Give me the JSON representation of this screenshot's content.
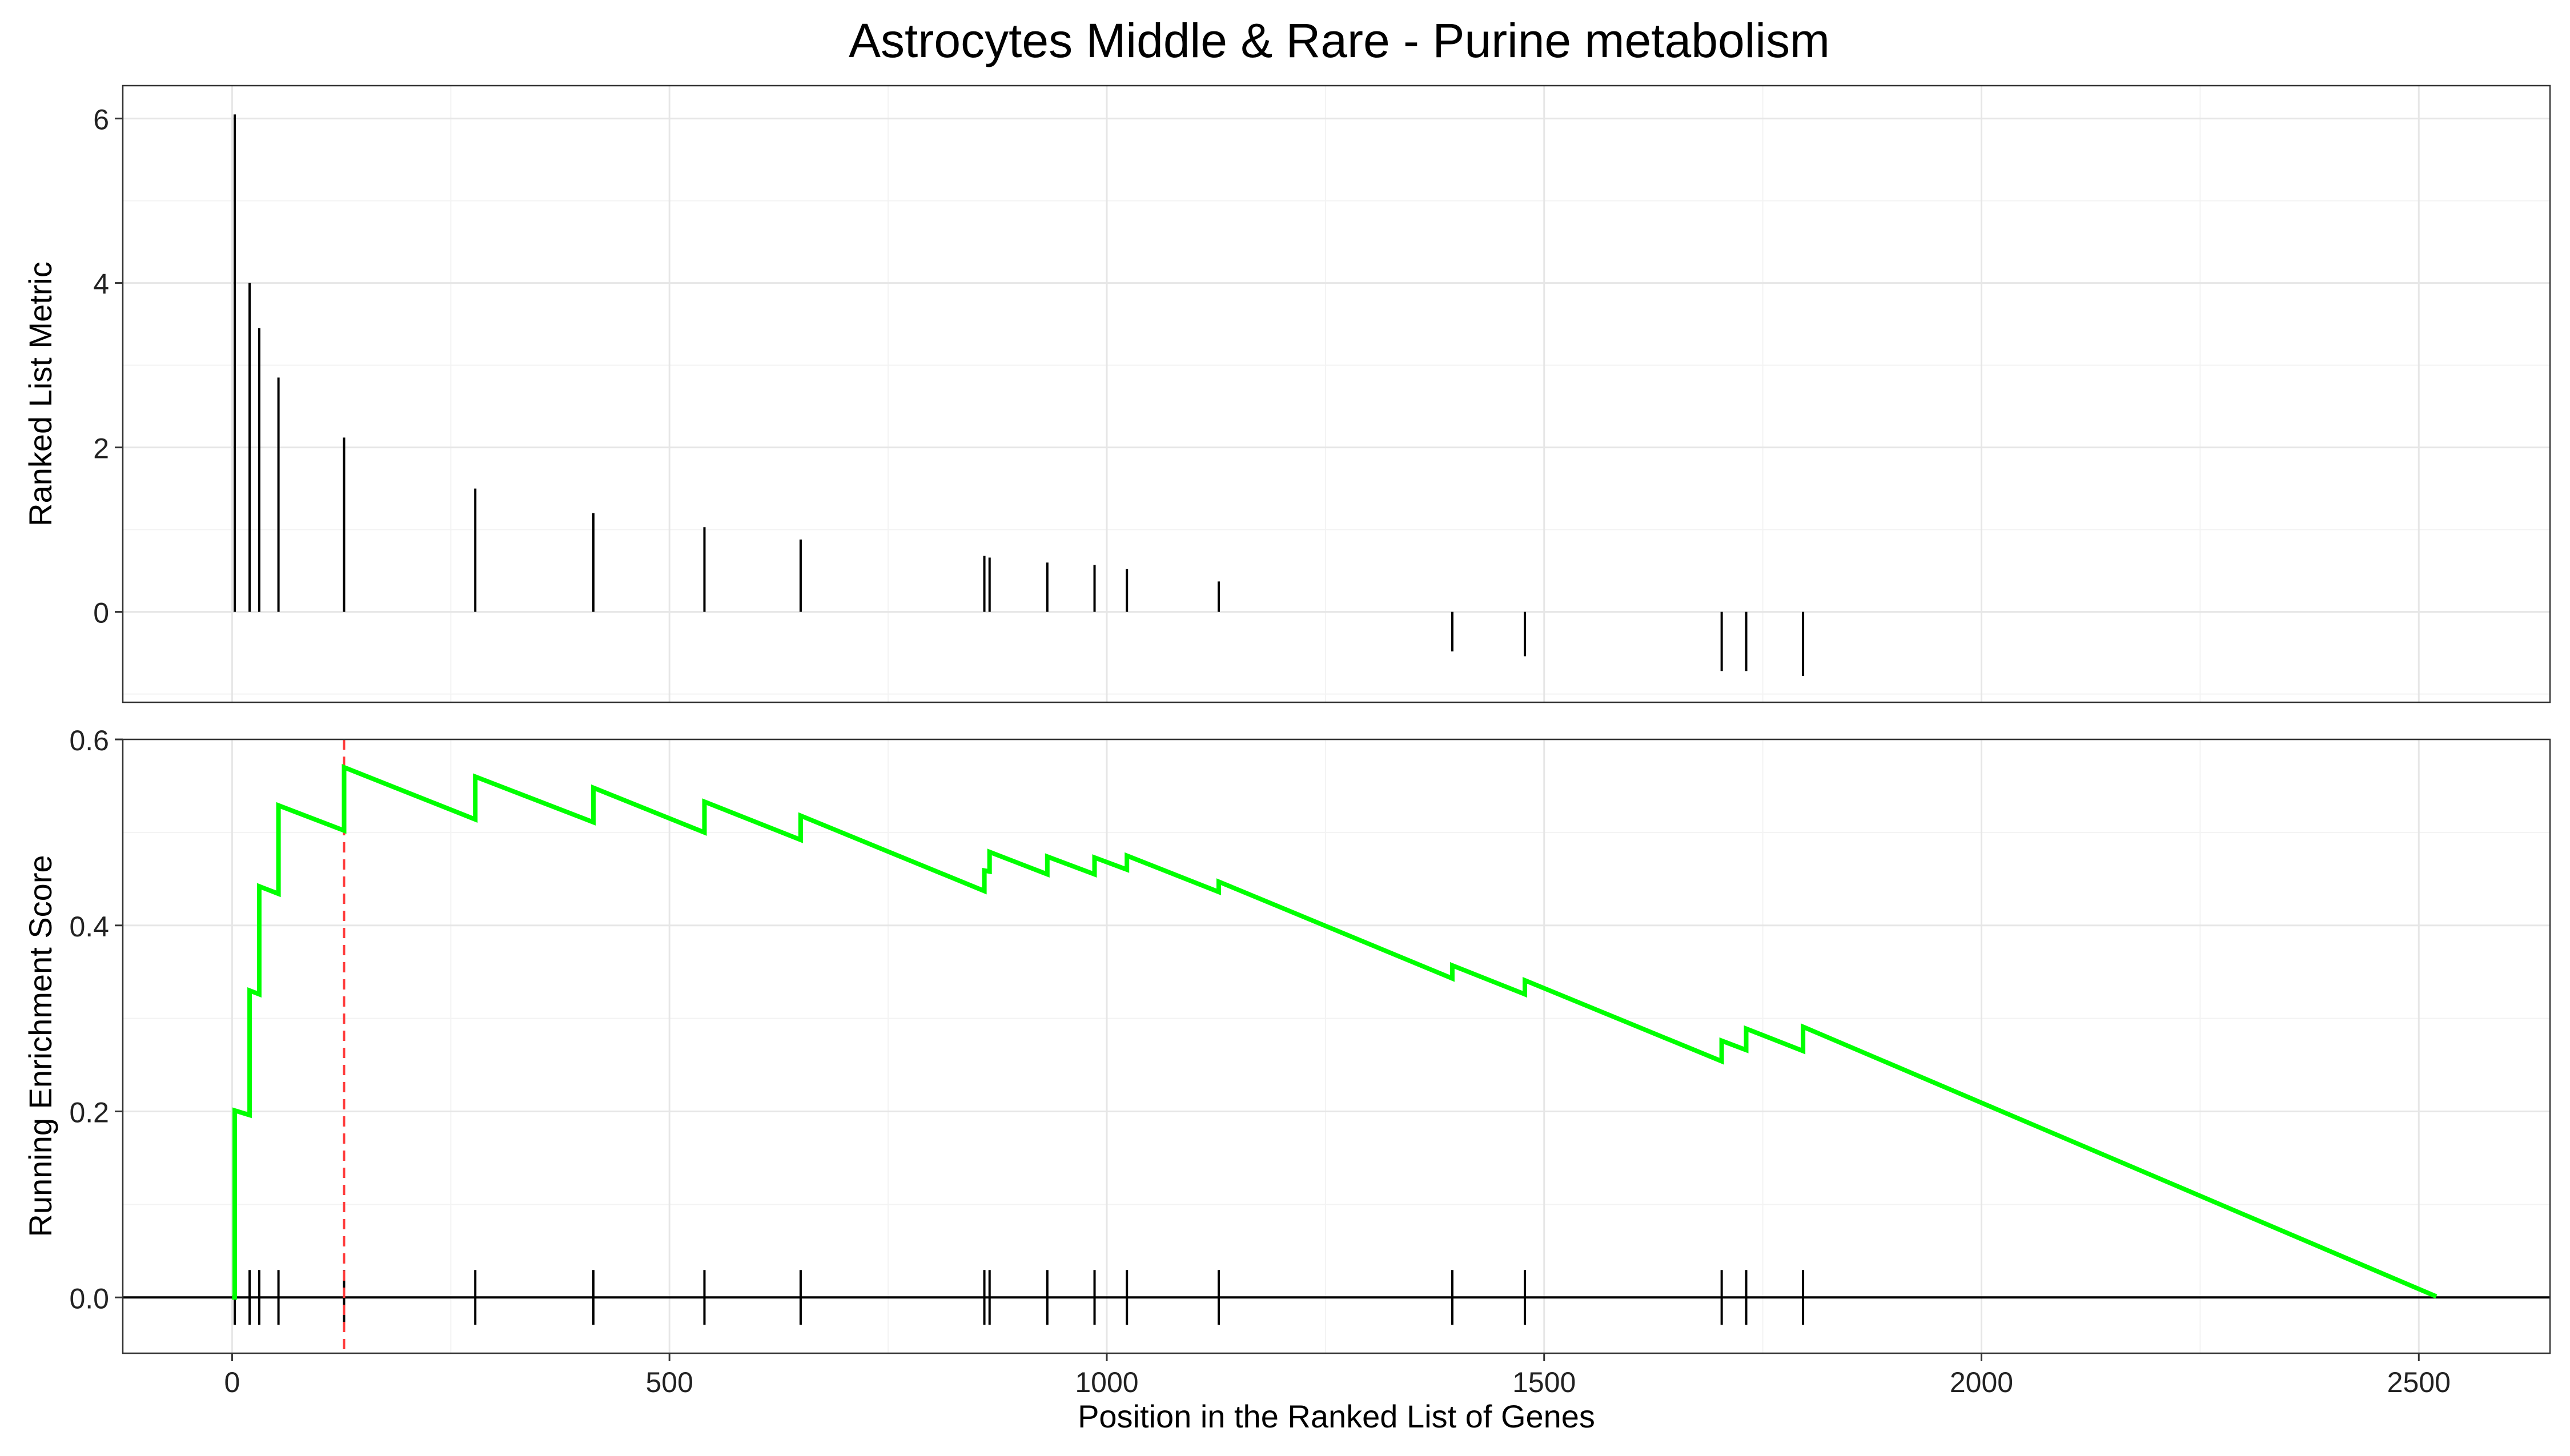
{
  "chart_data": {
    "type": "line",
    "title": "Astrocytes Middle & Rare - Purine metabolism",
    "xlabel": "Position in the Ranked List of Genes",
    "xlim": [
      -125,
      2650
    ],
    "x_ticks": [
      0,
      500,
      1000,
      1500,
      2000,
      2500
    ],
    "x_tick_labels": [
      "0",
      "500",
      "1000",
      "1500",
      "2000",
      "2500"
    ],
    "grid": true,
    "colors": {
      "enrichment_line": "#00ff00",
      "peak_marker": "#ff3b3b",
      "bars": "#000000",
      "grid_major": "#e6e6e6",
      "grid_minor": "#f3f3f3",
      "panel_border": "#333333"
    },
    "hit_positions": [
      3,
      20,
      31,
      53,
      128,
      278,
      413,
      540,
      650,
      860,
      866,
      932,
      986,
      1023,
      1128,
      1395,
      1478,
      1703,
      1731,
      1796
    ],
    "ranked_list": {
      "ylabel": "Ranked List Metric",
      "ylim": [
        -1.1,
        6.4
      ],
      "y_ticks": [
        0,
        2,
        4,
        6
      ],
      "y_tick_labels": [
        "0",
        "2",
        "4",
        "6"
      ],
      "metric_values": [
        6.05,
        4.0,
        3.45,
        2.85,
        2.12,
        1.5,
        1.2,
        1.03,
        0.88,
        0.68,
        0.66,
        0.6,
        0.57,
        0.52,
        0.37,
        -0.48,
        -0.54,
        -0.72,
        -0.72,
        -0.78
      ]
    },
    "running_score": {
      "ylabel": "Running Enrichment Score",
      "ylim": [
        -0.06,
        0.6
      ],
      "y_ticks": [
        0.0,
        0.2,
        0.4,
        0.6
      ],
      "y_tick_labels": [
        "0.0",
        "0.2",
        "0.4",
        "0.6"
      ],
      "peak_position": 128,
      "end_position": 2520,
      "points": [
        [
          0,
          0.0
        ],
        [
          3,
          0.0
        ],
        [
          3,
          0.201
        ],
        [
          20,
          0.196
        ],
        [
          20,
          0.33
        ],
        [
          31,
          0.326
        ],
        [
          31,
          0.442
        ],
        [
          53,
          0.434
        ],
        [
          53,
          0.529
        ],
        [
          128,
          0.502
        ],
        [
          128,
          0.57
        ],
        [
          278,
          0.514
        ],
        [
          278,
          0.56
        ],
        [
          413,
          0.511
        ],
        [
          413,
          0.548
        ],
        [
          540,
          0.5
        ],
        [
          540,
          0.533
        ],
        [
          650,
          0.492
        ],
        [
          650,
          0.518
        ],
        [
          860,
          0.437
        ],
        [
          860,
          0.459
        ],
        [
          866,
          0.458
        ],
        [
          866,
          0.479
        ],
        [
          932,
          0.455
        ],
        [
          932,
          0.474
        ],
        [
          986,
          0.455
        ],
        [
          986,
          0.473
        ],
        [
          1023,
          0.46
        ],
        [
          1023,
          0.475
        ],
        [
          1128,
          0.436
        ],
        [
          1128,
          0.447
        ],
        [
          1395,
          0.343
        ],
        [
          1395,
          0.357
        ],
        [
          1478,
          0.326
        ],
        [
          1478,
          0.341
        ],
        [
          1703,
          0.254
        ],
        [
          1703,
          0.276
        ],
        [
          1731,
          0.266
        ],
        [
          1731,
          0.289
        ],
        [
          1796,
          0.265
        ],
        [
          1796,
          0.291
        ],
        [
          2520,
          0.001
        ]
      ]
    }
  }
}
